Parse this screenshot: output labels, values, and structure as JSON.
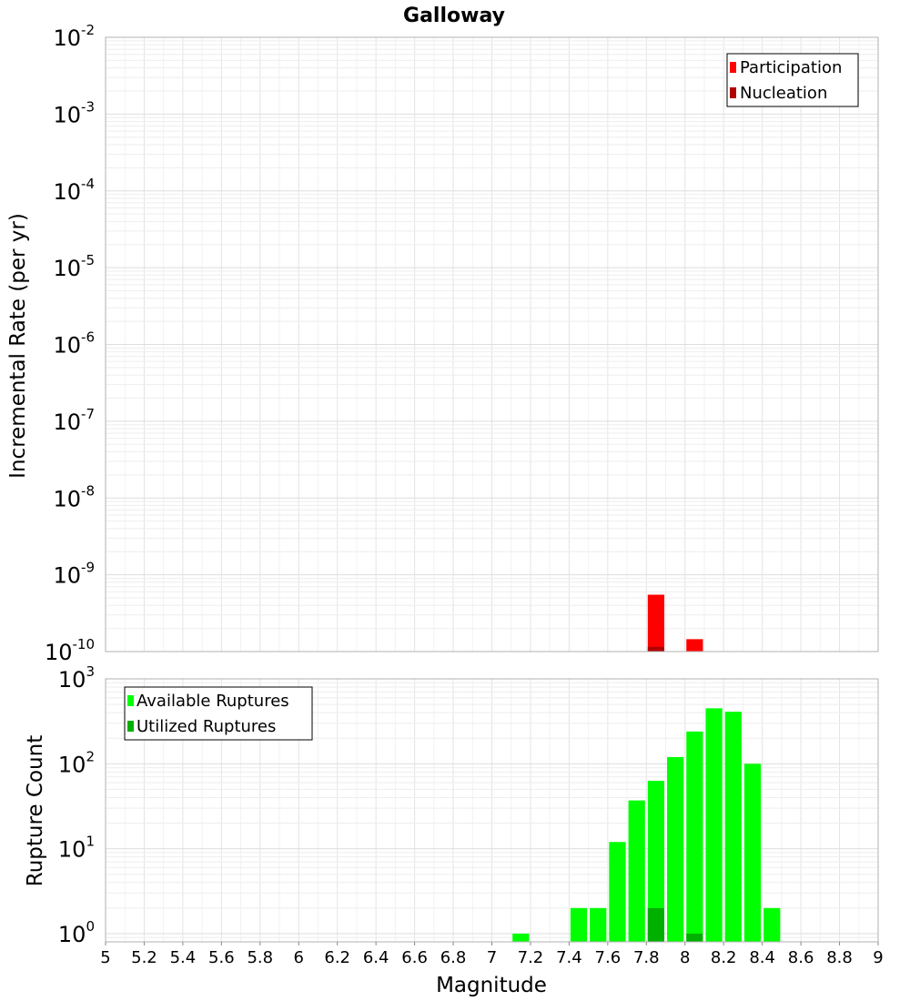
{
  "chart_data": [
    {
      "type": "bar",
      "title": "Galloway",
      "ylabel": "Incremental Rate (per yr)",
      "xlabel": "",
      "yscale": "log",
      "ylim": [
        1e-10,
        0.01
      ],
      "xlim": [
        5,
        9
      ],
      "ytick_labels": [
        {
          "value": 0.01,
          "base": "10",
          "exp": "-2"
        },
        {
          "value": 0.001,
          "base": "10",
          "exp": "-3"
        },
        {
          "value": 0.0001,
          "base": "10",
          "exp": "-4"
        },
        {
          "value": 1e-05,
          "base": "10",
          "exp": "-5"
        },
        {
          "value": 1e-06,
          "base": "10",
          "exp": "-6"
        },
        {
          "value": 1e-07,
          "base": "10",
          "exp": "-7"
        },
        {
          "value": 1e-08,
          "base": "10",
          "exp": "-8"
        },
        {
          "value": 1e-09,
          "base": "10",
          "exp": "-9"
        },
        {
          "value": 1e-10,
          "base": "10",
          "exp": "-10"
        }
      ],
      "grid": true,
      "legend_position": "top-right",
      "bin_width": 0.1,
      "series": [
        {
          "name": "Participation",
          "color": "#ff0000",
          "x": [
            7.85,
            8.05
          ],
          "values": [
            5.5e-10,
            1.45e-10
          ]
        },
        {
          "name": "Nucleation",
          "color": "#b00000",
          "x": [
            7.85
          ],
          "values": [
            1.15e-10
          ]
        }
      ]
    },
    {
      "type": "bar",
      "title": "",
      "ylabel": "Rupture Count",
      "xlabel": "Magnitude",
      "yscale": "log",
      "ylim": [
        0.8,
        1000
      ],
      "xlim": [
        5,
        9
      ],
      "xticks": [
        "5",
        "5.2",
        "5.4",
        "5.6",
        "5.8",
        "6",
        "6.2",
        "6.4",
        "6.6",
        "6.8",
        "7",
        "7.2",
        "7.4",
        "7.6",
        "7.8",
        "8",
        "8.2",
        "8.4",
        "8.6",
        "8.8",
        "9"
      ],
      "ytick_labels": [
        {
          "value": 1000,
          "base": "10",
          "exp": "3"
        },
        {
          "value": 100,
          "base": "10",
          "exp": "2"
        },
        {
          "value": 10,
          "base": "10",
          "exp": "1"
        },
        {
          "value": 1,
          "base": "10",
          "exp": "0"
        }
      ],
      "grid": true,
      "legend_position": "top-left",
      "bin_width": 0.1,
      "series": [
        {
          "name": "Available Ruptures",
          "color": "#00ff00",
          "x": [
            7.15,
            7.45,
            7.55,
            7.65,
            7.75,
            7.85,
            7.95,
            8.05,
            8.15,
            8.25,
            8.35,
            8.45
          ],
          "values": [
            1,
            2,
            2,
            12,
            37,
            63,
            120,
            240,
            450,
            410,
            100,
            2
          ]
        },
        {
          "name": "Utilized Ruptures",
          "color": "#00b000",
          "x": [
            7.85,
            8.05
          ],
          "values": [
            2,
            1
          ]
        }
      ]
    }
  ]
}
